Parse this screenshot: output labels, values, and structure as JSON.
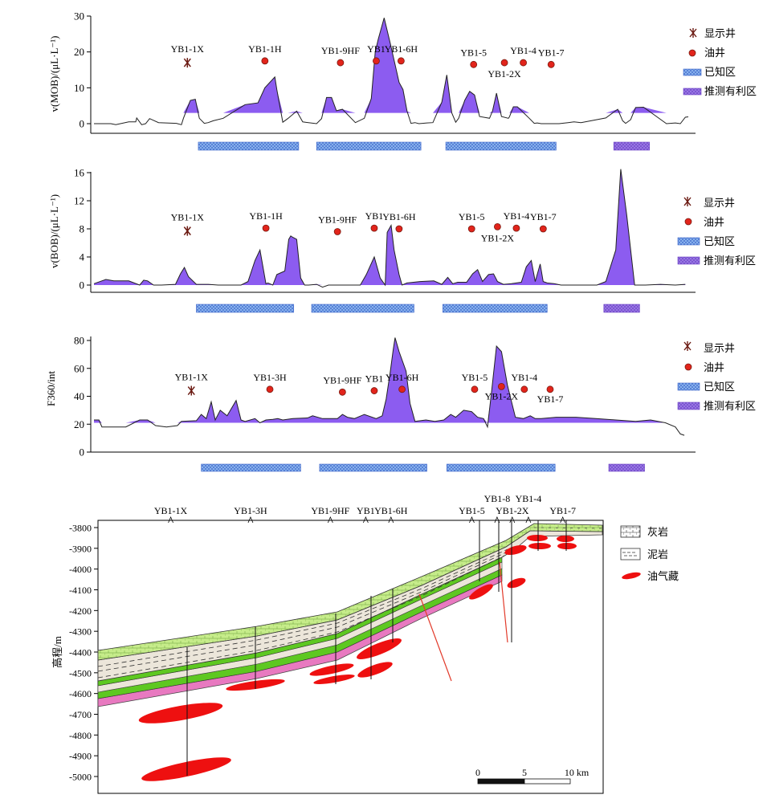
{
  "colors": {
    "anomaly": "#8c5cf0",
    "known_zone": "#8eb8f0",
    "inferred_zone": "#9c7ce6",
    "well_dot": "#e2241b",
    "show_well": "#6b1a12",
    "limestone_layer": "#c6ec8a",
    "green_band": "#5ec821",
    "pink_band": "#e879c0",
    "mudstone": "#ece6da",
    "reservoir": "#ee1010",
    "fault": "#e23a2a"
  },
  "legend": {
    "show_well": "显示井",
    "oil_well": "油井",
    "known_zone": "已知区",
    "inferred_zone": "推测有利区",
    "limestone": "灰岩",
    "mudstone": "泥岩",
    "reservoir": "油气藏"
  },
  "chart_data": [
    {
      "type": "area",
      "name": "MOB profile",
      "ylabel": "v(MOB)/(μL·L⁻¹)",
      "ylim": [
        0,
        30
      ],
      "yticks": [
        0,
        10,
        20,
        30
      ],
      "baseline": 3,
      "x_km": [
        0,
        1.7,
        2.2,
        3.5,
        4.2,
        4.3,
        4.8,
        5.2,
        5.6,
        6.5,
        8.3,
        8.8,
        9.0,
        9.7,
        10.2,
        10.6,
        11.1,
        11.5,
        12.0,
        13.0,
        15.2,
        16.5,
        17.2,
        18.2,
        18.4,
        19.0,
        19.5,
        20.4,
        21.0,
        22.4,
        22.9,
        23.4,
        23.9,
        24.4,
        25.0,
        26.3,
        27.2,
        27.9,
        28.3,
        28.6,
        29.2,
        29.8,
        30.3,
        30.7,
        31.1,
        31.5,
        31.9,
        32.3,
        32.7,
        33.5,
        34.1,
        35.0,
        35.5,
        36.0,
        36.4,
        36.7,
        37.3,
        37.8,
        38.3,
        38.8,
        39.8,
        40.1,
        40.5,
        41.0,
        41.7,
        41.8,
        42.2,
        42.6,
        43.8,
        44.3,
        44.6,
        45.0,
        46.8,
        47.7,
        48.3,
        49.0,
        51.5,
        52.7,
        53.2,
        53.5,
        54.0,
        54.5,
        55.3,
        57.6,
        58.5,
        59.0,
        59.5,
        59.8
      ],
      "y": [
        0,
        0,
        -0.3,
        0.5,
        0.5,
        1.6,
        -0.3,
        0,
        1.4,
        0.3,
        0.1,
        -0.3,
        1.5,
        6.5,
        6.8,
        1.5,
        0.1,
        0.3,
        0.8,
        1.5,
        5.3,
        5.8,
        10.0,
        13.0,
        9.5,
        0.4,
        1.4,
        3.5,
        0.5,
        0,
        1.4,
        7.3,
        7.3,
        3.6,
        4.0,
        0.3,
        1.5,
        7.0,
        20.0,
        23.5,
        29.5,
        22.5,
        16.5,
        11.5,
        9.5,
        3.5,
        0.1,
        0.3,
        0,
        0.2,
        0.3,
        6.0,
        13.6,
        3.0,
        0.4,
        1.5,
        6.5,
        9.0,
        8.0,
        2.0,
        1.5,
        3.5,
        8.5,
        2.0,
        1.5,
        1.9,
        4.7,
        4.7,
        1.5,
        0.1,
        0.2,
        0,
        0,
        0.3,
        0.5,
        0.3,
        1.6,
        4.0,
        0.8,
        0.1,
        1.1,
        4.5,
        4.6,
        0,
        0.2,
        0,
        1.8,
        1.9
      ]
    },
    {
      "type": "area",
      "name": "BOB profile",
      "ylabel": "v(BOB)/(μL·L⁻¹)",
      "ylim": [
        0,
        16
      ],
      "yticks": [
        0,
        4,
        8,
        12,
        16
      ],
      "baseline": 0,
      "x_km": [
        0,
        1.2,
        2.0,
        3.0,
        3.5,
        4.6,
        5.0,
        5.4,
        6.0,
        6.8,
        8.2,
        8.7,
        9.1,
        9.5,
        10.3,
        11.5,
        12.5,
        14.0,
        14.8,
        15.5,
        16.2,
        16.7,
        17.3,
        17.5,
        18.0,
        18.4,
        19.2,
        19.6,
        19.8,
        20.0,
        20.4,
        20.8,
        21.2,
        21.6,
        22.4,
        23.0,
        23.6,
        24.4,
        25.2,
        26.0,
        26.8,
        27.4,
        28.2,
        28.8,
        29.3,
        29.5,
        29.9,
        30.2,
        30.7,
        31.0,
        31.5,
        32.8,
        34.2,
        35.0,
        35.6,
        36.1,
        36.6,
        37.5,
        38.1,
        38.6,
        39.1,
        39.7,
        40.2,
        40.6,
        41.2,
        42.0,
        43.0,
        43.5,
        44.0,
        44.4,
        44.9,
        45.2,
        45.6,
        46.3,
        47.0,
        48.5,
        49.5,
        50.6,
        51.5,
        52.5,
        53.0,
        53.6,
        54.4,
        55.5,
        57.0,
        58.5,
        59.5
      ],
      "y": [
        0.2,
        0.8,
        0.6,
        0.6,
        0.6,
        0,
        0.7,
        0.6,
        0,
        0,
        0.1,
        1.6,
        2.5,
        1.2,
        0.1,
        0.1,
        0,
        0,
        0,
        0.5,
        3.5,
        5.0,
        0.2,
        0.3,
        0,
        1.5,
        2.0,
        6.5,
        7.0,
        6.8,
        6.5,
        1.0,
        0,
        0,
        0.1,
        -0.3,
        0,
        0,
        0,
        0,
        0,
        1.5,
        4.0,
        1.0,
        0,
        7.5,
        8.5,
        5.0,
        1.5,
        0,
        0.3,
        0.5,
        0.6,
        0.1,
        1.1,
        0.2,
        0.4,
        0.4,
        1.6,
        2.2,
        0.5,
        1.5,
        1.6,
        0.5,
        0.1,
        0.2,
        0.4,
        2.6,
        3.5,
        0.5,
        3.0,
        0.5,
        0.3,
        0.2,
        0,
        0,
        0,
        0,
        0.5,
        5.0,
        16.5,
        10.0,
        0,
        0,
        0.1,
        0,
        0.1
      ]
    },
    {
      "type": "area",
      "name": "F360 profile",
      "ylabel": "F360/int",
      "ylim": [
        0,
        80
      ],
      "yticks": [
        0,
        20,
        40,
        60,
        80
      ],
      "baseline": 21,
      "x_km": [
        0,
        0.5,
        0.8,
        3.2,
        4.6,
        5.4,
        6.2,
        7.3,
        8.4,
        8.8,
        10.3,
        10.8,
        11.3,
        11.8,
        12.2,
        12.7,
        13.4,
        14.3,
        14.8,
        15.2,
        16.2,
        16.7,
        17.3,
        18.0,
        18.5,
        19.0,
        20.0,
        21.5,
        22.0,
        23.0,
        24.5,
        25.0,
        25.5,
        26.2,
        27.2,
        28.4,
        29.0,
        29.4,
        29.8,
        30.1,
        30.3,
        30.7,
        31.4,
        31.8,
        32.3,
        33.4,
        34.3,
        35.2,
        35.9,
        36.4,
        37.2,
        38.0,
        38.6,
        39.2,
        39.6,
        40.0,
        40.5,
        41.0,
        41.6,
        42.4,
        43.2,
        43.9,
        44.4,
        45.0,
        46.5,
        48.5,
        50.5,
        52.5,
        54.5,
        56.0,
        57.5,
        58.5,
        59.0,
        59.4
      ],
      "y": [
        23,
        23,
        18,
        18,
        23,
        23,
        19,
        18,
        19,
        22,
        22.5,
        27,
        24,
        36,
        23,
        30,
        26,
        37,
        23,
        22,
        24,
        21,
        23,
        23.5,
        24,
        23,
        24,
        24.5,
        26,
        24,
        24,
        27,
        25,
        24,
        27,
        24,
        26,
        38,
        57,
        73,
        82,
        72,
        58,
        35,
        22,
        23,
        22,
        23,
        27,
        25,
        30,
        29,
        25,
        24,
        18,
        43,
        76,
        72,
        48,
        25,
        24,
        26,
        24,
        24,
        25,
        25,
        24,
        23,
        22,
        23,
        21,
        18,
        13,
        12
      ]
    }
  ],
  "profiles": [
    {
      "show_well": {
        "label": "YB1-1X",
        "x_km": 9.4,
        "v": 17
      },
      "wells": [
        {
          "label": "YB1-1H",
          "x_km": 17.2,
          "v": 17.5
        },
        {
          "label": "YB1-9HF",
          "x_km": 24.8,
          "v": 17
        },
        {
          "label": "YB1",
          "x_km": 28.4,
          "v": 17.5
        },
        {
          "label": "YB1-6H",
          "x_km": 30.9,
          "v": 17.5
        },
        {
          "label": "YB1-5",
          "x_km": 38.2,
          "v": 16.5
        },
        {
          "label": "YB1-2X",
          "x_km": 41.3,
          "v": 17
        },
        {
          "label": "YB1-4",
          "x_km": 43.2,
          "v": 17
        },
        {
          "label": "YB1-7",
          "x_km": 46.0,
          "v": 16.5
        }
      ],
      "zones": [
        {
          "type": "known",
          "x1": 10.5,
          "x2": 20.6
        },
        {
          "type": "known",
          "x1": 22.4,
          "x2": 32.9
        },
        {
          "type": "known",
          "x1": 35.4,
          "x2": 46.5
        },
        {
          "type": "inferred",
          "x1": 52.3,
          "x2": 55.9
        }
      ]
    },
    {
      "show_well": {
        "label": "YB1-1X",
        "x_km": 9.4,
        "v": 7.7
      },
      "wells": [
        {
          "label": "YB1-1H",
          "x_km": 17.3,
          "v": 8.1
        },
        {
          "label": "YB1-9HF",
          "x_km": 24.5,
          "v": 7.6
        },
        {
          "label": "YB1",
          "x_km": 28.2,
          "v": 8.1
        },
        {
          "label": "YB1-6H",
          "x_km": 30.7,
          "v": 8.0
        },
        {
          "label": "YB1-5",
          "x_km": 38.0,
          "v": 8.0
        },
        {
          "label": "YB1-2X",
          "x_km": 40.6,
          "v": 8.3
        },
        {
          "label": "YB1-4",
          "x_km": 42.5,
          "v": 8.1
        },
        {
          "label": "YB1-7",
          "x_km": 45.2,
          "v": 8.0
        }
      ],
      "zones": [
        {
          "type": "known",
          "x1": 10.3,
          "x2": 20.1
        },
        {
          "type": "known",
          "x1": 21.9,
          "x2": 32.2
        },
        {
          "type": "known",
          "x1": 35.1,
          "x2": 45.6
        },
        {
          "type": "inferred",
          "x1": 51.3,
          "x2": 54.9
        }
      ]
    },
    {
      "show_well": {
        "label": "YB1-1X",
        "x_km": 9.8,
        "v": 44
      },
      "wells": [
        {
          "label": "YB1-3H",
          "x_km": 17.7,
          "v": 45
        },
        {
          "label": "YB1-9HF",
          "x_km": 25.0,
          "v": 43
        },
        {
          "label": "YB1",
          "x_km": 28.2,
          "v": 44
        },
        {
          "label": "YB1-6H",
          "x_km": 31.0,
          "v": 45
        },
        {
          "label": "YB1-5",
          "x_km": 38.3,
          "v": 45
        },
        {
          "label": "YB1-2X",
          "x_km": 41.0,
          "v": 47
        },
        {
          "label": "YB1-4",
          "x_km": 43.3,
          "v": 45
        },
        {
          "label": "YB1-7",
          "x_km": 45.9,
          "v": 45
        }
      ],
      "zones": [
        {
          "type": "known",
          "x1": 10.8,
          "x2": 20.8
        },
        {
          "type": "known",
          "x1": 22.7,
          "x2": 33.5
        },
        {
          "type": "known",
          "x1": 35.5,
          "x2": 46.4
        },
        {
          "type": "inferred",
          "x1": 51.8,
          "x2": 55.4
        }
      ]
    }
  ],
  "cross_section": {
    "ylabel": "高程/m",
    "ylim": [
      -5000,
      -3800
    ],
    "yticks": [
      -3800,
      -3900,
      -4000,
      -4100,
      -4200,
      -4300,
      -4400,
      -4500,
      -4600,
      -4700,
      -4800,
      -4900,
      -5000
    ],
    "wells_top": [
      {
        "label": "YB1-1X",
        "x_km": 7.2
      },
      {
        "label": "YB1-3H",
        "x_km": 15.1
      },
      {
        "label": "YB1-9HF",
        "x_km": 23.0
      },
      {
        "label": "YB1",
        "x_km": 26.5
      },
      {
        "label": "YB1-6H",
        "x_km": 29.0
      },
      {
        "label": "YB1-5",
        "x_km": 37.0
      },
      {
        "label": "YB1-8",
        "x_km": 39.5
      },
      {
        "label": "YB1-2X",
        "x_km": 41.0
      },
      {
        "label": "YB1-4",
        "x_km": 42.6
      },
      {
        "label": "YB1-7",
        "x_km": 46.0
      }
    ],
    "scale_bar": {
      "labels": [
        "0",
        "5",
        "10 km"
      ]
    }
  }
}
